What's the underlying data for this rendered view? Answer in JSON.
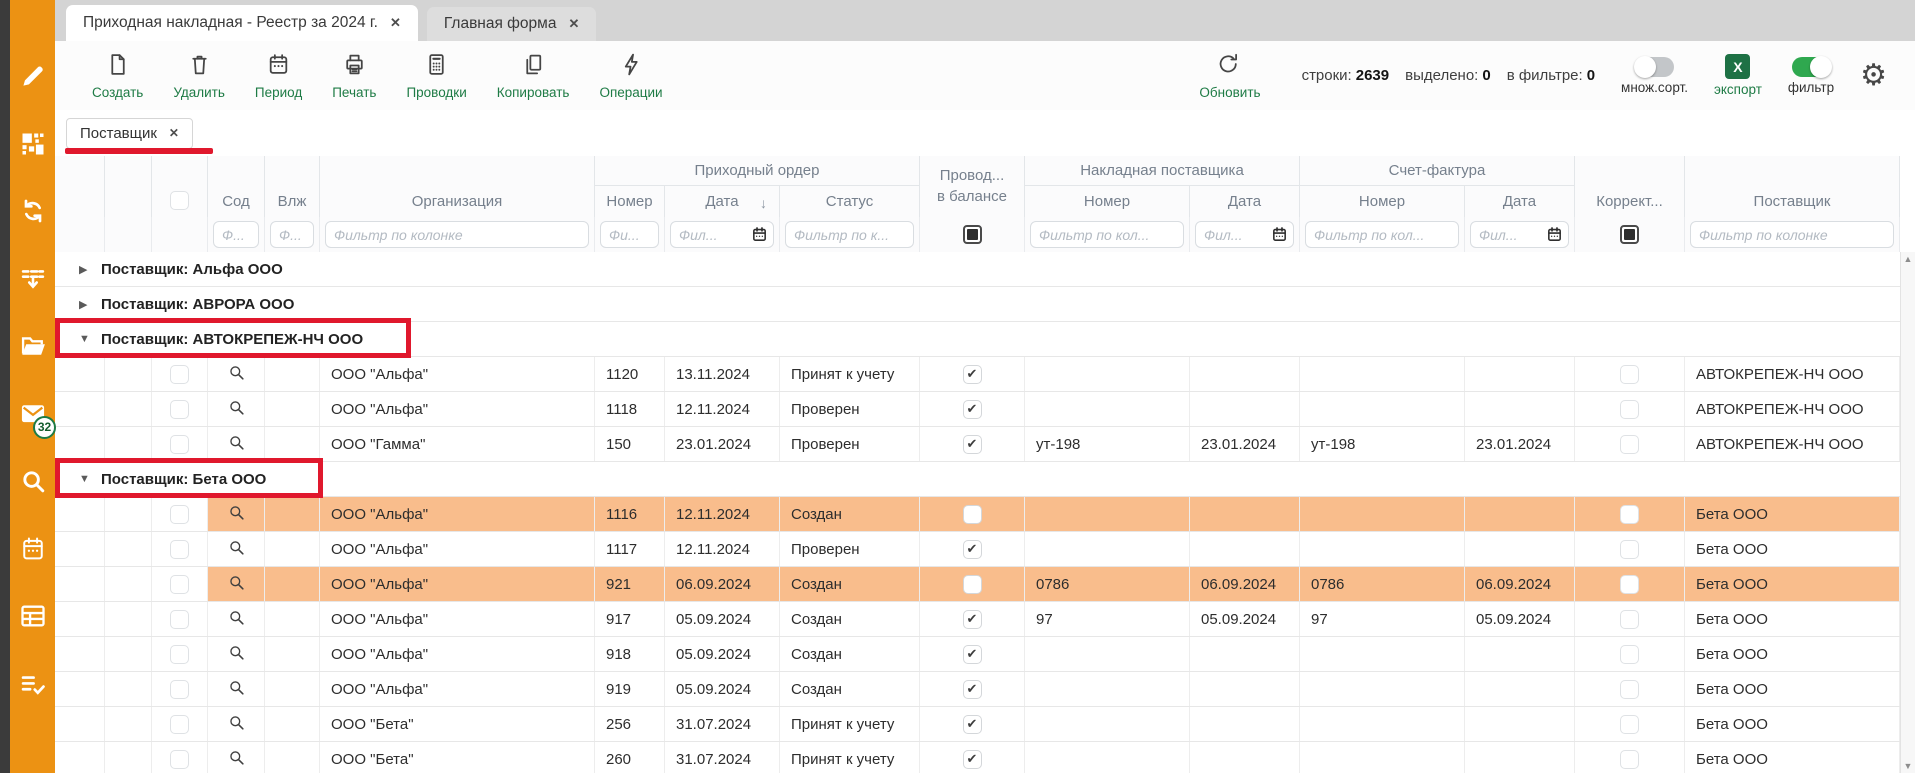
{
  "window": {
    "tabs": [
      {
        "label": "Приходная накладная - Реестр за 2024 г.",
        "active": true
      },
      {
        "label": "Главная форма",
        "active": false
      }
    ]
  },
  "toolbar": {
    "buttons": [
      {
        "label": "Создать",
        "icon": "new-document-icon"
      },
      {
        "label": "Удалить",
        "icon": "trash-icon"
      },
      {
        "label": "Период",
        "icon": "calendar-icon"
      },
      {
        "label": "Печать",
        "icon": "printer-icon"
      },
      {
        "label": "Проводки",
        "icon": "calculator-icon"
      },
      {
        "label": "Копировать",
        "icon": "copy-icon"
      },
      {
        "label": "Операции",
        "icon": "lightning-icon"
      }
    ],
    "refresh_label": "Обновить",
    "stats": [
      {
        "label": "строки:",
        "value": "2639"
      },
      {
        "label": "выделено:",
        "value": "0"
      },
      {
        "label": "в фильтре:",
        "value": "0"
      }
    ],
    "multi_sort": {
      "label": "множ.сорт.",
      "state": "off"
    },
    "export": {
      "label": "экспорт",
      "icon_letter": "X"
    },
    "filter": {
      "label": "фильтр",
      "state": "on"
    }
  },
  "filter_chip": {
    "label": "Поставщик"
  },
  "table": {
    "headers": {
      "sod": "Сод",
      "vlzh": "Влж",
      "org": "Организация",
      "group_po": "Приходный ордер",
      "po_num": "Номер",
      "po_date": "Дата",
      "po_status": "Статус",
      "sort_indicator": "↓",
      "provod_line1": "Провод...",
      "provod_line2": "в балансе",
      "group_np": "Накладная поставщика",
      "np_num": "Номер",
      "np_date": "Дата",
      "group_sf": "Счет-фактура",
      "sf_num": "Номер",
      "sf_date": "Дата",
      "korrekt": "Коррект...",
      "supplier": "Поставщик"
    },
    "filters": {
      "sod": "Ф...",
      "vlzh": "Ф...",
      "org": "Фильтр по колонке",
      "po_num": "Фи...",
      "po_date": "Фил...",
      "po_status": "Фильтр по к...",
      "np_num": "Фильтр по кол...",
      "np_date": "Фил...",
      "sf_num": "Фильтр по кол...",
      "sf_date": "Фил...",
      "supplier": "Фильтр по колонке"
    },
    "group_label_prefix": "Поставщик:",
    "rows": [
      {
        "type": "group",
        "name": "Альфа ООО",
        "expanded": false
      },
      {
        "type": "group",
        "name": "АВРОРА ООО",
        "expanded": false
      },
      {
        "type": "group",
        "name": "АВТОКРЕПЕЖ-НЧ ООО",
        "expanded": true,
        "red_box": true,
        "red_box_w": 356
      },
      {
        "type": "data",
        "org": "ООО \"Альфа\"",
        "po_num": "1120",
        "po_date": "13.11.2024",
        "po_status": "Принят к учету",
        "balance": true,
        "np_num": "",
        "np_date": "",
        "sf_num": "",
        "sf_date": "",
        "supplier": "АВТОКРЕПЕЖ-НЧ ООО",
        "highlight": false
      },
      {
        "type": "data",
        "org": "ООО \"Альфа\"",
        "po_num": "1118",
        "po_date": "12.11.2024",
        "po_status": "Проверен",
        "balance": true,
        "np_num": "",
        "np_date": "",
        "sf_num": "",
        "sf_date": "",
        "supplier": "АВТОКРЕПЕЖ-НЧ ООО",
        "highlight": false
      },
      {
        "type": "data",
        "org": "ООО \"Гамма\"",
        "po_num": "150",
        "po_date": "23.01.2024",
        "po_status": "Проверен",
        "balance": true,
        "np_num": "ут-198",
        "np_date": "23.01.2024",
        "sf_num": "ут-198",
        "sf_date": "23.01.2024",
        "supplier": "АВТОКРЕПЕЖ-НЧ ООО",
        "highlight": false
      },
      {
        "type": "group",
        "name": "Бета ООО",
        "expanded": true,
        "red_box": true,
        "red_box_w": 268
      },
      {
        "type": "data",
        "org": "ООО \"Альфа\"",
        "po_num": "1116",
        "po_date": "12.11.2024",
        "po_status": "Создан",
        "balance": false,
        "np_num": "",
        "np_date": "",
        "sf_num": "",
        "sf_date": "",
        "supplier": "Бета ООО",
        "highlight": true
      },
      {
        "type": "data",
        "org": "ООО \"Альфа\"",
        "po_num": "1117",
        "po_date": "12.11.2024",
        "po_status": "Проверен",
        "balance": true,
        "np_num": "",
        "np_date": "",
        "sf_num": "",
        "sf_date": "",
        "supplier": "Бета ООО",
        "highlight": false
      },
      {
        "type": "data",
        "org": "ООО \"Альфа\"",
        "po_num": "921",
        "po_date": "06.09.2024",
        "po_status": "Создан",
        "balance": false,
        "np_num": "0786",
        "np_date": "06.09.2024",
        "sf_num": "0786",
        "sf_date": "06.09.2024",
        "supplier": "Бета ООО",
        "highlight": true
      },
      {
        "type": "data",
        "org": "ООО \"Альфа\"",
        "po_num": "917",
        "po_date": "05.09.2024",
        "po_status": "Создан",
        "balance": true,
        "np_num": "97",
        "np_date": "05.09.2024",
        "sf_num": "97",
        "sf_date": "05.09.2024",
        "supplier": "Бета ООО",
        "highlight": false
      },
      {
        "type": "data",
        "org": "ООО \"Альфа\"",
        "po_num": "918",
        "po_date": "05.09.2024",
        "po_status": "Создан",
        "balance": true,
        "np_num": "",
        "np_date": "",
        "sf_num": "",
        "sf_date": "",
        "supplier": "Бета ООО",
        "highlight": false
      },
      {
        "type": "data",
        "org": "ООО \"Альфа\"",
        "po_num": "919",
        "po_date": "05.09.2024",
        "po_status": "Создан",
        "balance": true,
        "np_num": "",
        "np_date": "",
        "sf_num": "",
        "sf_date": "",
        "supplier": "Бета ООО",
        "highlight": false
      },
      {
        "type": "data",
        "org": "ООО \"Бета\"",
        "po_num": "256",
        "po_date": "31.07.2024",
        "po_status": "Принят к учету",
        "balance": true,
        "np_num": "",
        "np_date": "",
        "sf_num": "",
        "sf_date": "",
        "supplier": "Бета ООО",
        "highlight": false
      },
      {
        "type": "data",
        "org": "ООО \"Бета\"",
        "po_num": "260",
        "po_date": "31.07.2024",
        "po_status": "Принят к учету",
        "balance": true,
        "np_num": "",
        "np_date": "",
        "sf_num": "",
        "sf_date": "",
        "supplier": "Бета ООО",
        "highlight": false
      }
    ]
  },
  "sidebar": {
    "icons": [
      {
        "name": "edit-pencil-icon"
      },
      {
        "name": "qr-code-icon"
      },
      {
        "name": "sync-icon"
      },
      {
        "name": "export-list-icon"
      },
      {
        "name": "folder-open-icon"
      },
      {
        "name": "mail-icon",
        "badge": "32"
      },
      {
        "name": "search-icon"
      },
      {
        "name": "calendar-icon"
      },
      {
        "name": "table-report-icon"
      },
      {
        "name": "checklist-icon"
      }
    ]
  },
  "colors": {
    "accent_orange": "#ec9213",
    "row_highlight": "#f9bd8c",
    "annotation_red": "#e0182d",
    "action_green": "#1e7b45",
    "excel_green": "#1e7145",
    "toggle_on_green": "#2fa84f"
  }
}
